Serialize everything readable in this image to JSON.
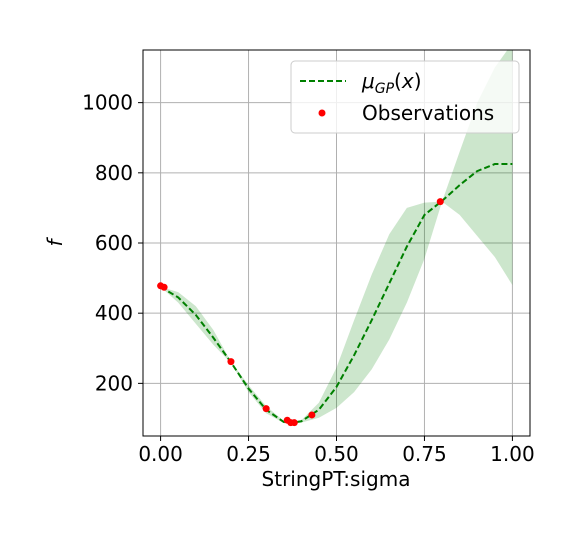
{
  "chart_data": {
    "type": "line",
    "xlabel": "StringPT:sigma",
    "ylabel": "f",
    "xlim": [
      -0.05,
      1.05
    ],
    "ylim": [
      50,
      1150
    ],
    "x_ticks": [
      0.0,
      0.25,
      0.5,
      0.75,
      1.0
    ],
    "x_tick_labels": [
      "0.00",
      "0.25",
      "0.50",
      "0.75",
      "1.00"
    ],
    "y_ticks": [
      200,
      400,
      600,
      800,
      1000
    ],
    "y_tick_labels": [
      "200",
      "400",
      "600",
      "800",
      "1000"
    ],
    "grid": true,
    "legend_position": "top-right",
    "series": [
      {
        "name": "μ_GP(x)",
        "legend_label": "μGP(x)",
        "style": "dashed",
        "color": "#008000",
        "x": [
          0.0,
          0.05,
          0.1,
          0.15,
          0.2,
          0.25,
          0.3,
          0.35,
          0.37,
          0.4,
          0.45,
          0.5,
          0.55,
          0.6,
          0.65,
          0.7,
          0.75,
          0.8,
          0.85,
          0.9,
          0.95,
          1.0
        ],
        "y": [
          475,
          445,
          395,
          330,
          260,
          185,
          125,
          90,
          87,
          92,
          125,
          190,
          280,
          380,
          485,
          590,
          680,
          720,
          765,
          805,
          825,
          825
        ]
      },
      {
        "name": "Observations",
        "style": "markers",
        "color": "#ff0000",
        "x": [
          0.0,
          0.01,
          0.2,
          0.3,
          0.36,
          0.37,
          0.38,
          0.43,
          0.795
        ],
        "y": [
          478,
          474,
          262,
          128,
          95,
          88,
          88,
          110,
          718
        ]
      },
      {
        "name": "confidence band",
        "style": "fill",
        "color": "#008000",
        "opacity": 0.2,
        "x": [
          0.0,
          0.05,
          0.1,
          0.15,
          0.2,
          0.25,
          0.3,
          0.35,
          0.37,
          0.4,
          0.45,
          0.5,
          0.55,
          0.6,
          0.65,
          0.7,
          0.75,
          0.8,
          0.85,
          0.9,
          0.95,
          1.0
        ],
        "lower": [
          475,
          430,
          370,
          310,
          258,
          175,
          115,
          87,
          85,
          88,
          102,
          130,
          175,
          240,
          325,
          430,
          555,
          718,
          680,
          620,
          560,
          480
        ],
        "upper": [
          475,
          460,
          420,
          352,
          262,
          195,
          135,
          93,
          89,
          95,
          145,
          245,
          380,
          510,
          625,
          700,
          715,
          718,
          860,
          1000,
          1100,
          1170
        ]
      }
    ]
  }
}
